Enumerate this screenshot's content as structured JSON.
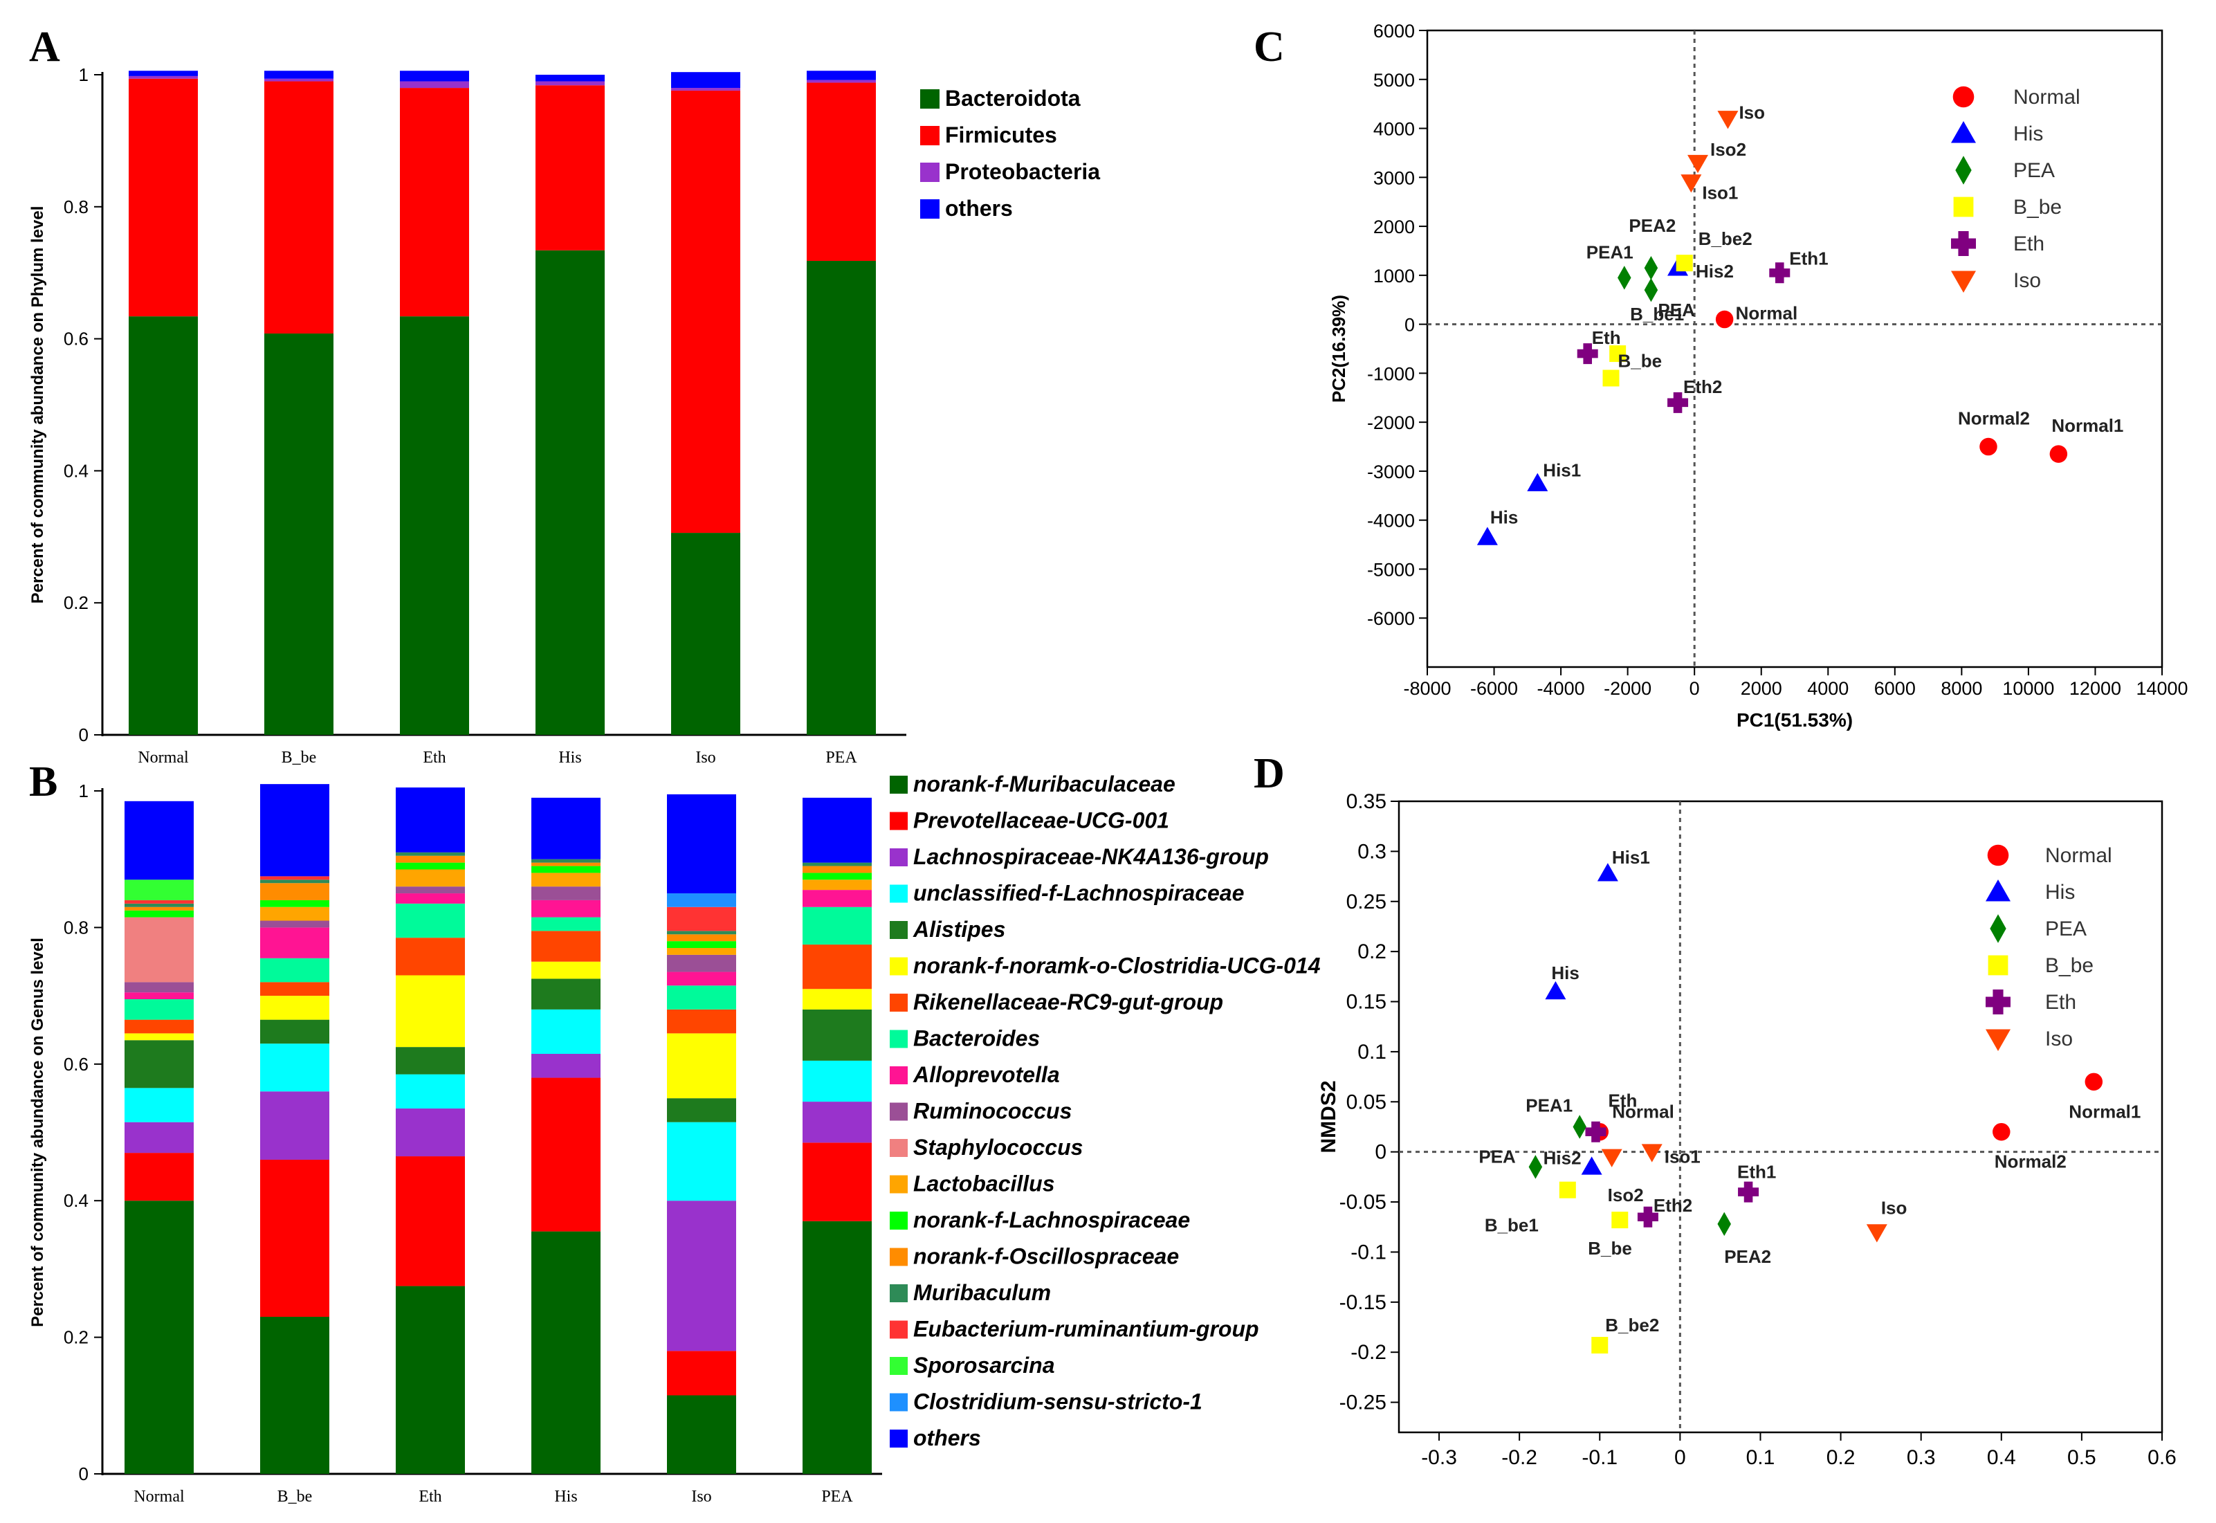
{
  "panels": {
    "A": {
      "label": "A"
    },
    "B": {
      "label": "B"
    },
    "C": {
      "label": "C"
    },
    "D": {
      "label": "D"
    }
  },
  "chart_data": [
    {
      "id": "A",
      "type": "bar",
      "stacked": true,
      "title": "",
      "xlabel": "",
      "ylabel": "Percent of community abundance on Phylum level",
      "ylim": [
        0,
        1
      ],
      "yticks": [
        "0",
        "0.2",
        "0.4",
        "0.6",
        "0.8",
        "1"
      ],
      "categories": [
        "Normal",
        "B_be",
        "Eth",
        "His",
        "Iso",
        "PEA"
      ],
      "series": [
        {
          "name": "Bacteroidota",
          "color": "#006400",
          "values": [
            0.634,
            0.608,
            0.634,
            0.734,
            0.306,
            0.718
          ]
        },
        {
          "name": "Firmicutes",
          "color": "#ff0000",
          "values": [
            0.36,
            0.382,
            0.346,
            0.25,
            0.67,
            0.27
          ]
        },
        {
          "name": "Proteobacteria",
          "color": "#9932cc",
          "values": [
            0.004,
            0.004,
            0.01,
            0.006,
            0.004,
            0.004
          ]
        },
        {
          "name": "others",
          "color": "#0000ff",
          "values": [
            0.008,
            0.012,
            0.016,
            0.01,
            0.024,
            0.014
          ]
        }
      ]
    },
    {
      "id": "B",
      "type": "bar",
      "stacked": true,
      "title": "",
      "xlabel": "",
      "ylabel": "Percent of community abundance on Genus level",
      "ylim": [
        0,
        1
      ],
      "yticks": [
        "0",
        "0.2",
        "0.4",
        "0.6",
        "0.8",
        "1"
      ],
      "categories": [
        "Normal",
        "B_be",
        "Eth",
        "His",
        "Iso",
        "PEA"
      ],
      "series": [
        {
          "name": "norank-f-Muribaculaceae",
          "color": "#006400",
          "values": [
            0.4,
            0.23,
            0.275,
            0.355,
            0.115,
            0.37
          ]
        },
        {
          "name": "Prevotellaceae-UCG-001",
          "color": "#ff0000",
          "values": [
            0.07,
            0.23,
            0.19,
            0.225,
            0.065,
            0.115
          ]
        },
        {
          "name": "Lachnospiraceae-NK4A136-group",
          "color": "#9932cc",
          "values": [
            0.045,
            0.1,
            0.07,
            0.035,
            0.22,
            0.06
          ]
        },
        {
          "name": "unclassified-f-Lachnospiraceae",
          "color": "#00ffff",
          "values": [
            0.05,
            0.07,
            0.05,
            0.065,
            0.115,
            0.06
          ]
        },
        {
          "name": "Alistipes",
          "color": "#1e7b1e",
          "values": [
            0.07,
            0.035,
            0.04,
            0.045,
            0.035,
            0.075
          ]
        },
        {
          "name": "norank-f-noramk-o-Clostridia-UCG-014",
          "color": "#ffff00",
          "values": [
            0.01,
            0.035,
            0.105,
            0.025,
            0.095,
            0.03
          ]
        },
        {
          "name": "Rikenellaceae-RC9-gut-group",
          "color": "#ff4500",
          "values": [
            0.02,
            0.02,
            0.055,
            0.045,
            0.035,
            0.065
          ]
        },
        {
          "name": "Bacteroides",
          "color": "#00fa9a",
          "values": [
            0.03,
            0.035,
            0.05,
            0.02,
            0.035,
            0.055
          ]
        },
        {
          "name": "Alloprevotella",
          "color": "#ff1493",
          "values": [
            0.01,
            0.045,
            0.015,
            0.025,
            0.02,
            0.025
          ]
        },
        {
          "name": "Ruminococcus",
          "color": "#9b4f96",
          "values": [
            0.015,
            0.01,
            0.01,
            0.02,
            0.025,
            0.0
          ]
        },
        {
          "name": "Staphylococcus",
          "color": "#f08080",
          "values": [
            0.095,
            0.0,
            0.0,
            0.0,
            0.0,
            0.0
          ]
        },
        {
          "name": "Lactobacillus",
          "color": "#ffa500",
          "values": [
            0.0,
            0.02,
            0.025,
            0.02,
            0.01,
            0.015
          ]
        },
        {
          "name": "norank-f-Lachnospiraceae",
          "color": "#00ff00",
          "values": [
            0.01,
            0.01,
            0.01,
            0.01,
            0.01,
            0.01
          ]
        },
        {
          "name": "norank-f-Oscillospraceae",
          "color": "#ff8c00",
          "values": [
            0.005,
            0.025,
            0.01,
            0.005,
            0.01,
            0.01
          ]
        },
        {
          "name": "Muribaculum",
          "color": "#2e8b57",
          "values": [
            0.005,
            0.005,
            0.005,
            0.005,
            0.005,
            0.005
          ]
        },
        {
          "name": "Eubacterium-ruminantium-group",
          "color": "#ff3333",
          "values": [
            0.005,
            0.005,
            0.0,
            0.0,
            0.035,
            0.0
          ]
        },
        {
          "name": "Sporosarcina",
          "color": "#32ff32",
          "values": [
            0.03,
            0.0,
            0.0,
            0.0,
            0.0,
            0.0
          ]
        },
        {
          "name": "Clostridium-sensu-stricto-1",
          "color": "#1e90ff",
          "values": [
            0.0,
            0.0,
            0.0,
            0.0,
            0.02,
            0.0
          ]
        },
        {
          "name": "others",
          "color": "#0000ff",
          "values": [
            0.115,
            0.135,
            0.095,
            0.09,
            0.145,
            0.095
          ]
        }
      ]
    },
    {
      "id": "C",
      "type": "scatter",
      "title": "",
      "xlabel": "PC1(51.53%)",
      "ylabel": "PC2(16.39%)",
      "xlim": [
        -8000,
        14000
      ],
      "ylim": [
        -7000,
        6000
      ],
      "xticks": [
        -8000,
        -6000,
        -4000,
        -2000,
        0,
        2000,
        4000,
        6000,
        8000,
        10000,
        12000,
        14000
      ],
      "yticks": [
        -6000,
        -5000,
        -4000,
        -3000,
        -2000,
        -1000,
        0,
        1000,
        2000,
        3000,
        4000,
        5000,
        6000
      ],
      "refline_x": 0,
      "refline_y": 0,
      "legend_position": "top-right",
      "series": [
        {
          "name": "Normal",
          "marker": "circle",
          "color": "#ff0000",
          "points": [
            {
              "label": "Normal",
              "x": 900,
              "y": 100
            },
            {
              "label": "Normal2",
              "x": 8800,
              "y": -2500
            },
            {
              "label": "Normal1",
              "x": 10900,
              "y": -2650
            }
          ]
        },
        {
          "name": "His",
          "marker": "triangle-up",
          "color": "#0000ff",
          "points": [
            {
              "label": "His2",
              "x": -500,
              "y": 1150
            },
            {
              "label": "His1",
              "x": -4700,
              "y": -3250
            },
            {
              "label": "His",
              "x": -6200,
              "y": -4350
            }
          ]
        },
        {
          "name": "PEA",
          "marker": "diamond",
          "color": "#008000",
          "points": [
            {
              "label": "PEA1",
              "x": -2100,
              "y": 950
            },
            {
              "label": "PEA2",
              "x": -1300,
              "y": 1150
            },
            {
              "label": "PEA",
              "x": -1300,
              "y": 700
            }
          ]
        },
        {
          "name": "B_be",
          "marker": "square",
          "color": "#ffff00",
          "points": [
            {
              "label": "B_be2",
              "x": -300,
              "y": 1250
            },
            {
              "label": "B_be1",
              "x": -2300,
              "y": -600
            },
            {
              "label": "B_be",
              "x": -2500,
              "y": -1100
            }
          ]
        },
        {
          "name": "Eth",
          "marker": "plus",
          "color": "#800080",
          "points": [
            {
              "label": "Eth1",
              "x": 2550,
              "y": 1050
            },
            {
              "label": "Eth",
              "x": -3200,
              "y": -600
            },
            {
              "label": "Eth2",
              "x": -500,
              "y": -1600
            }
          ]
        },
        {
          "name": "Iso",
          "marker": "triangle-down",
          "color": "#ff4500",
          "points": [
            {
              "label": "Iso",
              "x": 1000,
              "y": 4200
            },
            {
              "label": "Iso2",
              "x": 100,
              "y": 3300
            },
            {
              "label": "Iso1",
              "x": -100,
              "y": 2900
            }
          ]
        }
      ]
    },
    {
      "id": "D",
      "type": "scatter",
      "title": "",
      "xlabel": "",
      "ylabel": "NMDS2",
      "xlim": [
        -0.35,
        0.6
      ],
      "ylim": [
        -0.28,
        0.35
      ],
      "xticks": [
        "-0.3",
        "-0.2",
        "-0.1",
        "0",
        "0.1",
        "0.2",
        "0.3",
        "0.4",
        "0.5",
        "0.6"
      ],
      "yticks": [
        "-0.25",
        "-0.2",
        "-0.15",
        "-0.1",
        "-0.05",
        "0",
        "0.05",
        "0.1",
        "0.15",
        "0.2",
        "0.25",
        "0.3",
        "0.35"
      ],
      "refline_x": 0,
      "refline_y": 0,
      "legend_position": "top-right",
      "series": [
        {
          "name": "Normal",
          "marker": "circle",
          "color": "#ff0000",
          "points": [
            {
              "label": "Normal",
              "x": -0.1,
              "y": 0.02
            },
            {
              "label": "Normal1",
              "x": 0.515,
              "y": 0.07
            },
            {
              "label": "Normal2",
              "x": 0.4,
              "y": 0.02
            }
          ]
        },
        {
          "name": "His",
          "marker": "triangle-up",
          "color": "#0000ff",
          "points": [
            {
              "label": "His1",
              "x": -0.09,
              "y": 0.278
            },
            {
              "label": "His",
              "x": -0.155,
              "y": 0.16
            },
            {
              "label": "His2",
              "x": -0.11,
              "y": -0.015
            }
          ]
        },
        {
          "name": "PEA",
          "marker": "diamond",
          "color": "#008000",
          "points": [
            {
              "label": "PEA1",
              "x": -0.125,
              "y": 0.025
            },
            {
              "label": "PEA",
              "x": -0.18,
              "y": -0.015
            },
            {
              "label": "PEA2",
              "x": 0.055,
              "y": -0.072
            }
          ]
        },
        {
          "name": "B_be",
          "marker": "square",
          "color": "#ffff00",
          "points": [
            {
              "label": "B_be1",
              "x": -0.14,
              "y": -0.038
            },
            {
              "label": "B_be",
              "x": -0.075,
              "y": -0.068
            },
            {
              "label": "B_be2",
              "x": -0.1,
              "y": -0.193
            }
          ]
        },
        {
          "name": "Eth",
          "marker": "plus",
          "color": "#800080",
          "points": [
            {
              "label": "Eth",
              "x": -0.105,
              "y": 0.02
            },
            {
              "label": "Eth2",
              "x": -0.04,
              "y": -0.065
            },
            {
              "label": "Eth1",
              "x": 0.085,
              "y": -0.04
            }
          ]
        },
        {
          "name": "Iso",
          "marker": "triangle-down",
          "color": "#ff4500",
          "points": [
            {
              "label": "Iso2",
              "x": -0.085,
              "y": -0.005
            },
            {
              "label": "Iso1",
              "x": -0.035,
              "y": 0.0
            },
            {
              "label": "Iso",
              "x": 0.245,
              "y": -0.08
            }
          ]
        }
      ]
    }
  ]
}
